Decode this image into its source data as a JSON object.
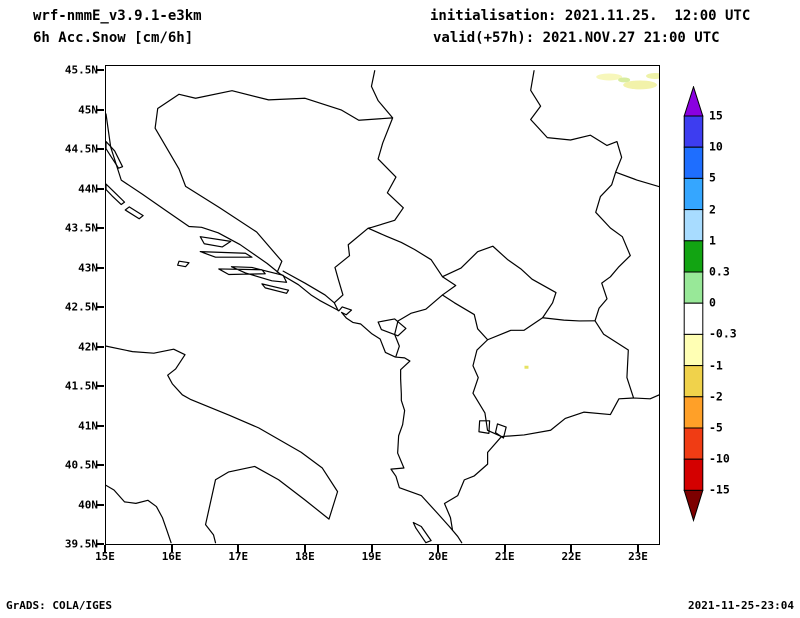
{
  "header": {
    "model": "wrf-nmmE_v3.9.1-e3km",
    "variable": "6h Acc.Snow [cm/6h]",
    "init_line": "initialisation: 2021.11.25.  12:00 UTC",
    "valid_line": "valid(+57h): 2021.NOV.27 21:00 UTC"
  },
  "map": {
    "lat_ticks": [
      "45.5N",
      "45N",
      "44.5N",
      "44N",
      "43.5N",
      "43N",
      "42.5N",
      "42N",
      "41.5N",
      "41N",
      "40.5N",
      "40N",
      "39.5N"
    ],
    "lon_ticks": [
      "15E",
      "16E",
      "17E",
      "18E",
      "19E",
      "20E",
      "21E",
      "22E",
      "23E"
    ]
  },
  "colorbar": {
    "labels": [
      "15",
      "10",
      "5",
      "2",
      "1",
      "0.3",
      "0",
      "-0.3",
      "-1",
      "-2",
      "-5",
      "-10",
      "-15"
    ],
    "segment_colors": [
      "#3d3df0",
      "#1e6eff",
      "#35a6ff",
      "#a8dcff",
      "#12a412",
      "#98e898",
      "#ffffff",
      "#ffffb4",
      "#f0d24b",
      "#ffa028",
      "#f03c14",
      "#d40000"
    ],
    "arrow_top_color": "#8a00e0",
    "arrow_bottom_color": "#7d0000",
    "outline_color": "#000000"
  },
  "footer": {
    "credit": "GrADS: COLA/IGES",
    "timestamp": "2021-11-25-23:04"
  }
}
